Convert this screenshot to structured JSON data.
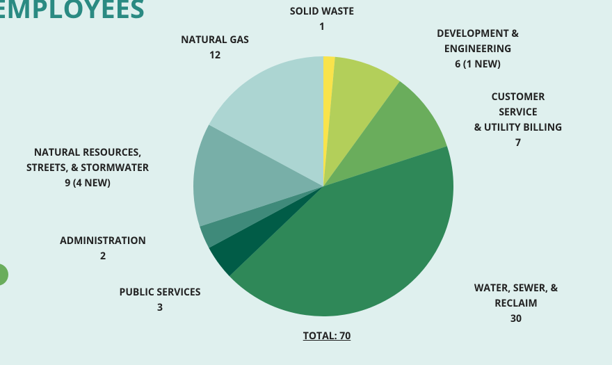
{
  "chart_data": {
    "type": "pie",
    "title": "EMPLOYEES",
    "categories": [
      "SOLID WASTE",
      "DEVELOPMENT & ENGINEERING",
      "CUSTOMER SERVICE\n& UTILITY BILLING",
      "WATER, SEWER, & RECLAIM",
      "PUBLIC SERVICES",
      "ADMINISTRATION",
      "NATURAL RESOURCES,\nSTREETS, & STORMWATER",
      "NATURAL GAS"
    ],
    "values": [
      1,
      6,
      7,
      30,
      3,
      2,
      9,
      12
    ],
    "value_labels": [
      "1",
      "6 (1 NEW)",
      "7",
      "30",
      "3",
      "2",
      "9 (4 NEW)",
      "12"
    ],
    "colors": [
      "#f9e34b",
      "#b3cf5a",
      "#6aad5c",
      "#2f8858",
      "#015c47",
      "#3f8a7a",
      "#78afa8",
      "#acd5d2"
    ],
    "total_label": "TOTAL: 70"
  }
}
